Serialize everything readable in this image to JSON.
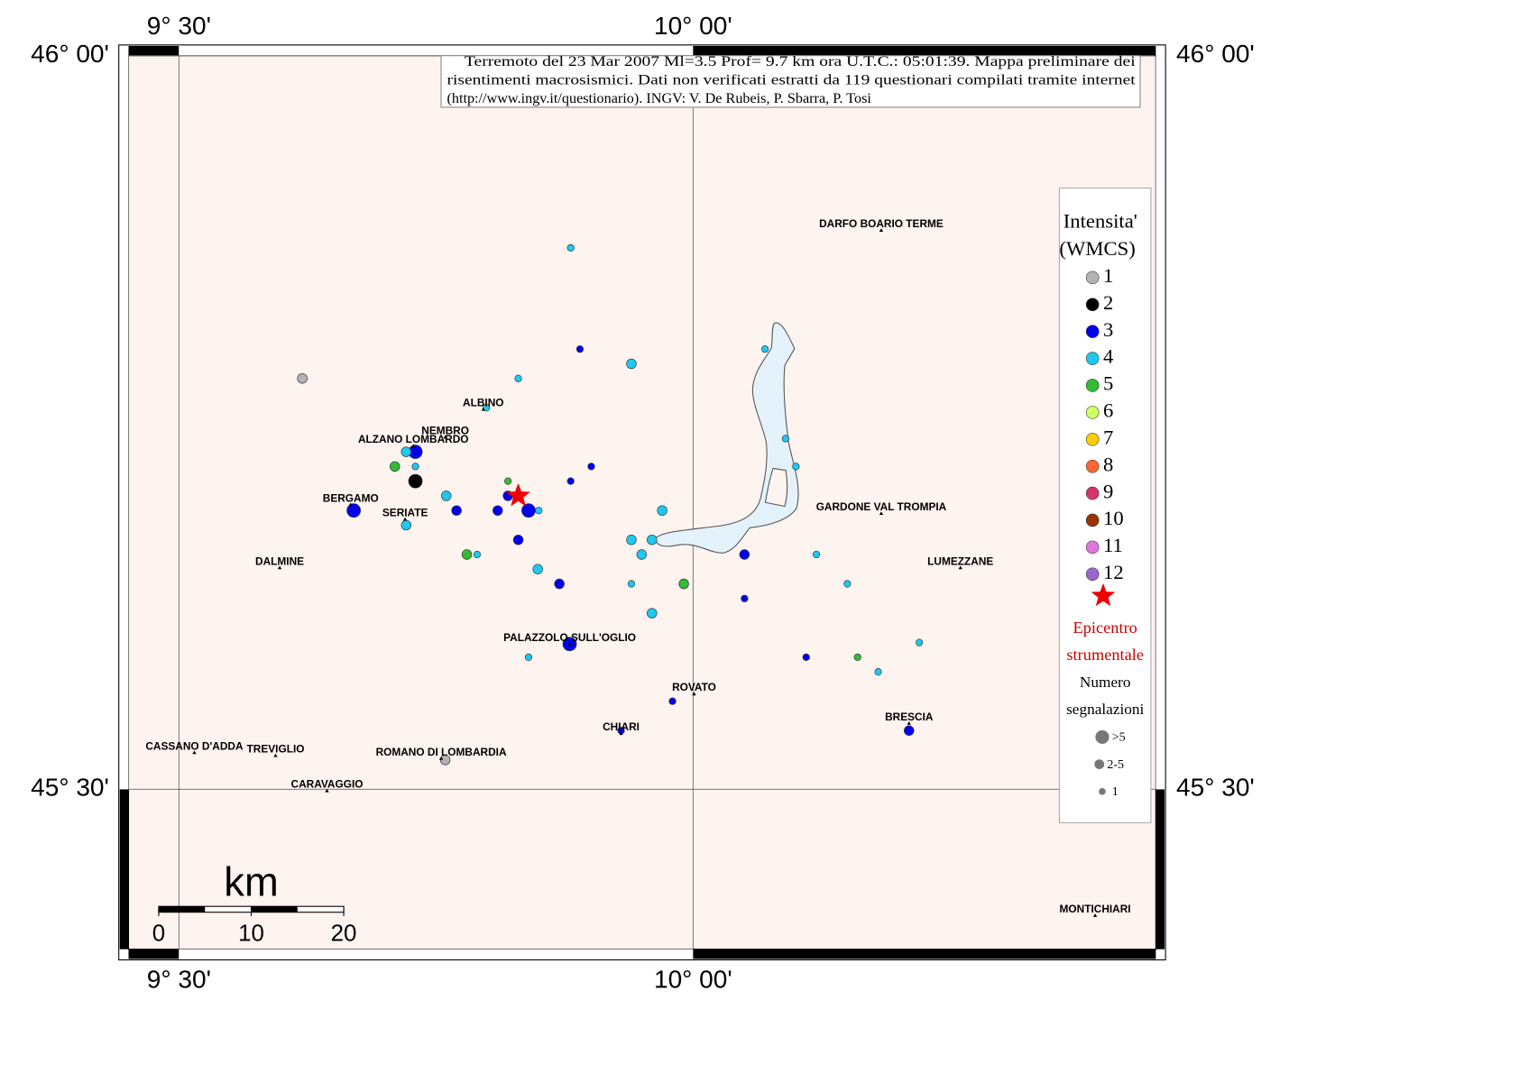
{
  "chart_data": {
    "type": "map",
    "title_lines": [
      "Terremoto del 23 Mar 2007 Ml=3.5 Prof= 9.7 km ora U.T.C.: 05:01:39.  Mappa preliminare dei",
      "risentimenti macrosismici.   Dati non verificati estratti da 119 questionari compilati tramite internet",
      "(http://www.ingv.it/questionario).   INGV: V.  De Rubeis, P.  Sbarra, P.  Tosi"
    ],
    "xlim": [
      9.451,
      10.45
    ],
    "ylim": [
      45.391,
      46
    ],
    "xticks": [
      {
        "value": 9.5,
        "label": "9° 30'"
      },
      {
        "value": 10,
        "label": "10° 00'"
      }
    ],
    "yticks": [
      {
        "value": 45.5,
        "label": "45° 30'"
      },
      {
        "value": 46,
        "label": "46° 00'"
      }
    ],
    "grid": true,
    "legend": {
      "title_lines": [
        "Intensita'",
        "(WMCS)"
      ],
      "epicenter_lines": [
        "Epicentro",
        "strumentale"
      ],
      "size_title_lines": [
        "Numero",
        "segnalazioni"
      ],
      "size_labels": [
        ">5",
        "2-5",
        "1"
      ]
    },
    "series": [
      {
        "name": "1",
        "color": "#b3b3b3",
        "x": [
          9.62,
          9.759
        ],
        "y": [
          45.78,
          45.52
        ],
        "sizes": [
          3,
          3
        ]
      },
      {
        "name": "2",
        "color": "#000000",
        "x": [
          9.73
        ],
        "y": [
          45.71
        ],
        "sizes": [
          6
        ]
      },
      {
        "name": "3",
        "color": "#0000ee",
        "x": [
          9.73,
          9.67,
          9.77,
          9.81,
          9.84,
          9.82,
          9.83,
          9.87,
          9.88,
          9.881,
          9.89,
          9.901,
          10.05,
          10.05,
          10.11,
          9.98,
          9.93,
          10.21
        ],
        "y": [
          45.73,
          45.69,
          45.69,
          45.69,
          45.69,
          45.7,
          45.67,
          45.64,
          45.599,
          45.71,
          45.8,
          45.72,
          45.66,
          45.63,
          45.59,
          45.56,
          45.54,
          45.54
        ],
        "sizes": [
          6,
          6,
          3,
          3,
          6,
          3,
          3,
          3,
          6,
          1,
          1,
          1,
          3,
          1,
          1,
          1,
          1,
          3
        ]
      },
      {
        "name": "4",
        "color": "#1ec8f0",
        "x": [
          9.881,
          9.94,
          9.83,
          9.799,
          9.721,
          9.73,
          9.76,
          9.85,
          9.721,
          9.79,
          9.849,
          9.94,
          9.96,
          9.97,
          9.95,
          9.94,
          9.96,
          9.84,
          10.07,
          10.09,
          10.1,
          10.12,
          10.15,
          10.22,
          10.18
        ],
        "y": [
          45.869,
          45.79,
          45.78,
          45.76,
          45.73,
          45.72,
          45.7,
          45.69,
          45.68,
          45.66,
          45.65,
          45.67,
          45.67,
          45.69,
          45.66,
          45.64,
          45.62,
          45.59,
          45.8,
          45.739,
          45.72,
          45.66,
          45.64,
          45.6,
          45.58
        ],
        "sizes": [
          1,
          3,
          1,
          1,
          3,
          1,
          3,
          1,
          3,
          1,
          3,
          3,
          3,
          3,
          3,
          1,
          3,
          1,
          1,
          1,
          1,
          1,
          1,
          1,
          1
        ]
      },
      {
        "name": "5",
        "color": "#33bb33",
        "x": [
          9.71,
          9.82,
          9.78,
          9.991,
          10.16
        ],
        "y": [
          45.72,
          45.71,
          45.66,
          45.64,
          45.59
        ],
        "sizes": [
          3,
          1,
          3,
          3,
          1
        ]
      },
      {
        "name": "6",
        "color": "#ccff66",
        "x": [],
        "y": [],
        "sizes": []
      },
      {
        "name": "7",
        "color": "#ffcc00",
        "x": [],
        "y": [],
        "sizes": []
      },
      {
        "name": "8",
        "color": "#ff6633",
        "x": [],
        "y": [],
        "sizes": []
      },
      {
        "name": "9",
        "color": "#d6336b",
        "x": [],
        "y": [],
        "sizes": []
      },
      {
        "name": "10",
        "color": "#993300",
        "x": [],
        "y": [],
        "sizes": []
      },
      {
        "name": "11",
        "color": "#dd77dd",
        "x": [],
        "y": [],
        "sizes": []
      },
      {
        "name": "12",
        "color": "#9966cc",
        "x": [],
        "y": [],
        "sizes": []
      }
    ],
    "epicenter": {
      "x": 9.83,
      "y": 45.7,
      "color": "#ee0000"
    },
    "towns": [
      {
        "name": "DARFO BOARIO TERME",
        "x": 10.183,
        "y": 45.881
      },
      {
        "name": "ALBINO",
        "x": 9.796,
        "y": 45.759
      },
      {
        "name": "NEMBRO",
        "x": 9.759,
        "y": 45.74
      },
      {
        "name": "ALZANO LOMBARDO",
        "x": 9.728,
        "y": 45.734
      },
      {
        "name": "BERGAMO",
        "x": 9.667,
        "y": 45.694
      },
      {
        "name": "SERIATE",
        "x": 9.72,
        "y": 45.684
      },
      {
        "name": "DALMINE",
        "x": 9.598,
        "y": 45.651
      },
      {
        "name": "GARDONE VAL TROMPIA",
        "x": 10.183,
        "y": 45.688
      },
      {
        "name": "LUMEZZANE",
        "x": 10.26,
        "y": 45.651
      },
      {
        "name": "PALAZZOLO SULL'OGLIO",
        "x": 9.88,
        "y": 45.599
      },
      {
        "name": "ROVATO",
        "x": 10.001,
        "y": 45.565
      },
      {
        "name": "CHIARI",
        "x": 9.93,
        "y": 45.538
      },
      {
        "name": "BRESCIA",
        "x": 10.21,
        "y": 45.545
      },
      {
        "name": "CASSANO D'ADDA",
        "x": 9.515,
        "y": 45.525
      },
      {
        "name": "TREVIGLIO",
        "x": 9.594,
        "y": 45.523
      },
      {
        "name": "ROMANO DI LOMBARDIA",
        "x": 9.755,
        "y": 45.521
      },
      {
        "name": "CARAVAGGIO",
        "x": 9.644,
        "y": 45.499
      },
      {
        "name": "MONTICHIARI",
        "x": 10.391,
        "y": 45.414
      }
    ],
    "scale_bar": {
      "label": "km",
      "ticks": [
        0,
        10,
        20
      ]
    }
  }
}
